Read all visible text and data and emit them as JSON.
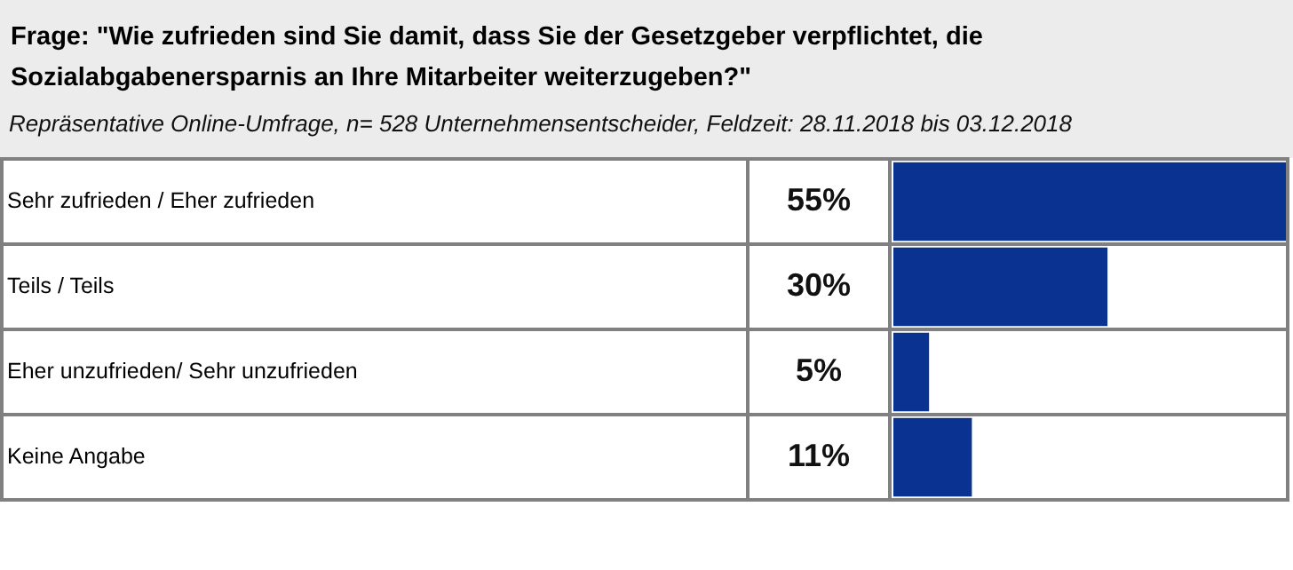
{
  "chart_data": {
    "type": "bar",
    "orientation": "horizontal",
    "title": "Frage: \"Wie zufrieden sind Sie damit, dass Sie der Gesetzgeber verpflichtet, die Sozialabgabenersparnis an Ihre Mitarbeiter weiterzugeben?\"",
    "subtitle": "Repräsentative Online-Umfrage, n= 528 Unternehmensentscheider, Feldzeit: 28.11.2018 bis 03.12.2018",
    "categories": [
      "Sehr zufrieden / Eher zufrieden",
      "Teils / Teils",
      "Eher unzufrieden/ Sehr unzufrieden",
      "Keine Angabe"
    ],
    "values": [
      55,
      30,
      5,
      11
    ],
    "value_labels": [
      "55%",
      "30%",
      "5%",
      "11%"
    ],
    "color": "#0a3291",
    "xlim": [
      0,
      55
    ],
    "grid": "y",
    "tick_labels": "y"
  }
}
